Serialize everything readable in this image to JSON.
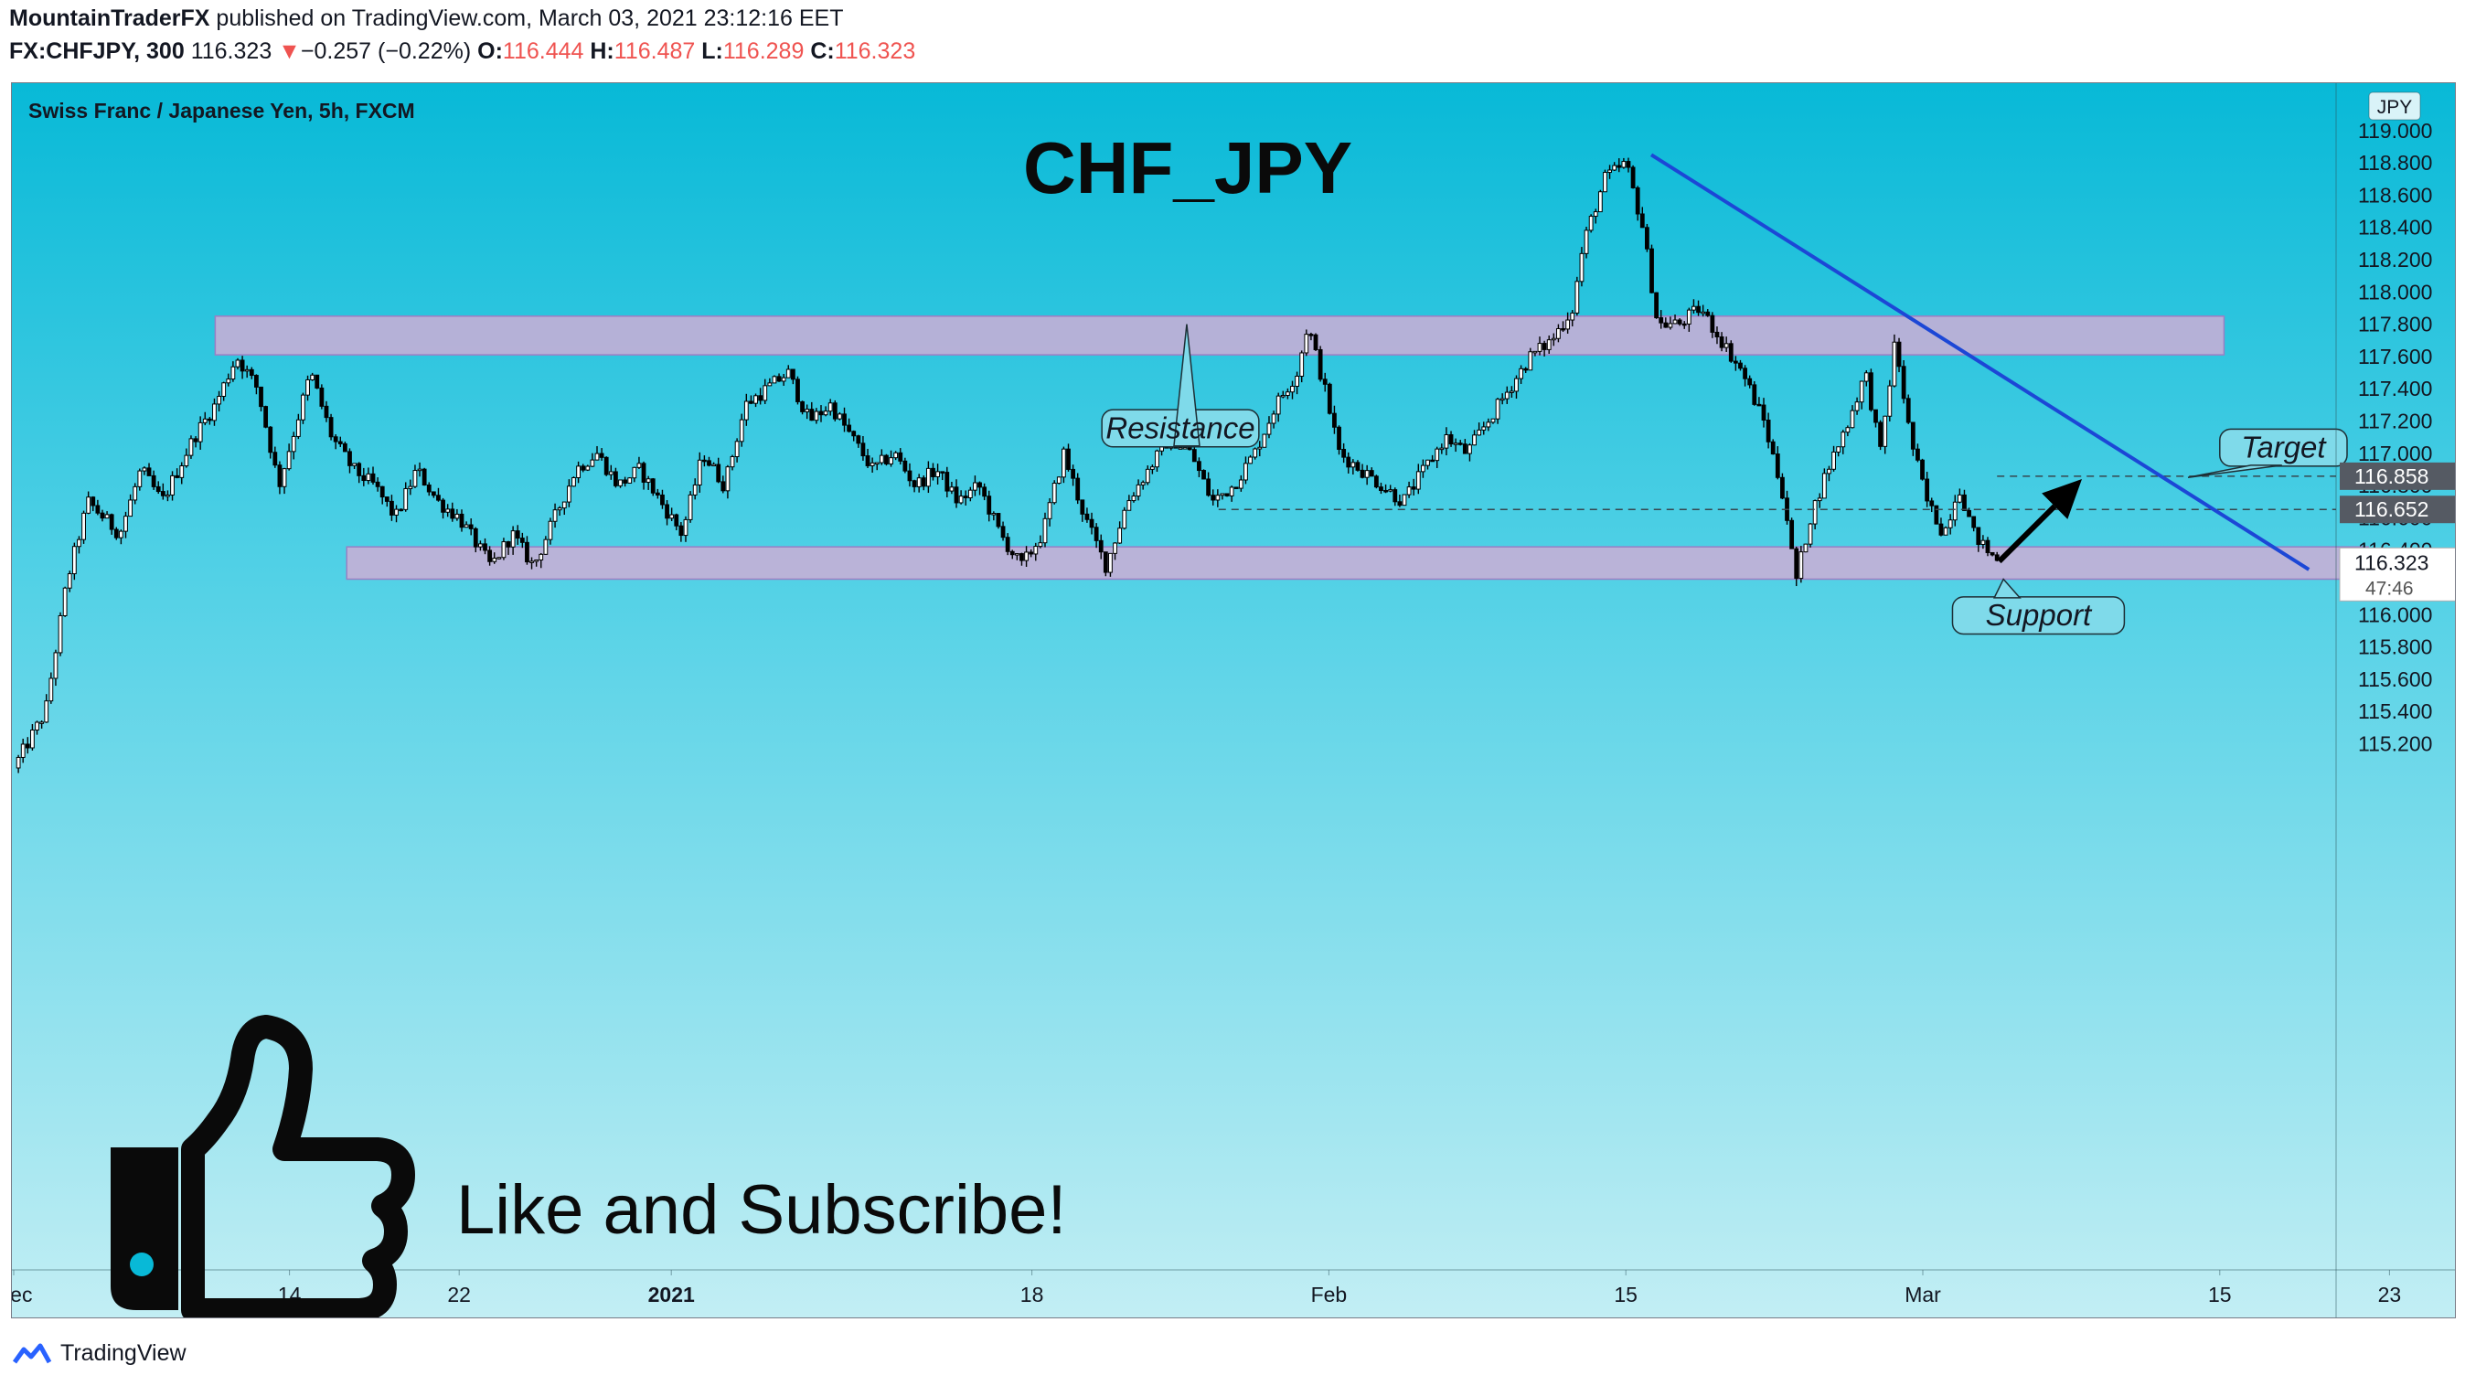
{
  "header": {
    "publisher": "MountainTraderFX",
    "published_text": "published on TradingView.com, March 03, 2021 23:12:16 EET",
    "symbol": "FX:CHFJPY, 300",
    "last": "116.323",
    "change_arrow": "▼",
    "change": "−0.257 (−0.22%)",
    "open_label": "O:",
    "open": "116.444",
    "high_label": "H:",
    "high": "116.487",
    "low_label": "L:",
    "low": "116.289",
    "close_label": "C:",
    "close": "116.323"
  },
  "footer": {
    "brand": "TradingView",
    "logo_icon": "tradingview-logo-icon"
  },
  "colors": {
    "accent_red": "#ef5350",
    "trendline": "#1c47d6",
    "zone_fill": "#c8aed6",
    "candle": "#000000"
  },
  "chart_data": {
    "type": "candlestick",
    "title": "Swiss Franc / Japanese Yen, 5h, FXCM",
    "headline": "CHF_JPY",
    "currency_badge": "JPY",
    "yaxis_ticks": [
      "119.000",
      "118.800",
      "118.600",
      "118.400",
      "118.200",
      "118.000",
      "117.800",
      "117.600",
      "117.400",
      "117.200",
      "117.000",
      "116.800",
      "116.600",
      "116.400",
      "116.000",
      "115.800",
      "115.600",
      "115.400",
      "115.200"
    ],
    "ylim": [
      115.0,
      119.4
    ],
    "xaxis_ticks": [
      {
        "label": "Dec",
        "day": 0
      },
      {
        "label": "14",
        "day": 13
      },
      {
        "label": "22",
        "day": 21
      },
      {
        "label": "2021",
        "day": 31
      },
      {
        "label": "18",
        "day": 48
      },
      {
        "label": "Feb",
        "day": 62
      },
      {
        "label": "15",
        "day": 76
      },
      {
        "label": "Mar",
        "day": 90
      },
      {
        "label": "15",
        "day": 104
      },
      {
        "label": "23",
        "day": 112
      }
    ],
    "price_labels": [
      "116.858",
      "116.652"
    ],
    "last_price": "116.323",
    "countdown": "47:46",
    "path": [
      [
        0,
        115.05
      ],
      [
        1.5,
        115.4
      ],
      [
        2.5,
        116.2
      ],
      [
        3.5,
        116.7
      ],
      [
        5,
        116.5
      ],
      [
        6,
        116.9
      ],
      [
        7,
        116.7
      ],
      [
        8.5,
        117.1
      ],
      [
        9.5,
        117.3
      ],
      [
        10.5,
        117.6
      ],
      [
        11.5,
        117.4
      ],
      [
        12.5,
        116.8
      ],
      [
        14,
        117.5
      ],
      [
        15,
        117.1
      ],
      [
        16,
        116.9
      ],
      [
        17,
        116.8
      ],
      [
        18,
        116.6
      ],
      [
        19,
        116.9
      ],
      [
        20,
        116.7
      ],
      [
        21,
        116.6
      ],
      [
        22.5,
        116.3
      ],
      [
        23.5,
        116.5
      ],
      [
        24.5,
        116.3
      ],
      [
        25.5,
        116.6
      ],
      [
        26.5,
        116.9
      ],
      [
        27.5,
        117.0
      ],
      [
        28.5,
        116.8
      ],
      [
        29.5,
        116.9
      ],
      [
        30.5,
        116.7
      ],
      [
        31.5,
        116.5
      ],
      [
        32.5,
        117.0
      ],
      [
        33.5,
        116.8
      ],
      [
        34.5,
        117.3
      ],
      [
        35.5,
        117.4
      ],
      [
        36.5,
        117.5
      ],
      [
        37.5,
        117.2
      ],
      [
        38.5,
        117.3
      ],
      [
        39.5,
        117.1
      ],
      [
        40.5,
        116.9
      ],
      [
        41.5,
        117.0
      ],
      [
        42.5,
        116.8
      ],
      [
        43.5,
        116.9
      ],
      [
        44.5,
        116.7
      ],
      [
        45.5,
        116.8
      ],
      [
        46.5,
        116.5
      ],
      [
        47.5,
        116.3
      ],
      [
        48.5,
        116.5
      ],
      [
        49.5,
        117.0
      ],
      [
        50.5,
        116.6
      ],
      [
        51.5,
        116.3
      ],
      [
        52.5,
        116.7
      ],
      [
        53.5,
        116.9
      ],
      [
        54.5,
        117.1
      ],
      [
        55.5,
        117.0
      ],
      [
        56.5,
        116.7
      ],
      [
        57.5,
        116.8
      ],
      [
        58.5,
        117.0
      ],
      [
        59.5,
        117.3
      ],
      [
        60.5,
        117.5
      ],
      [
        61,
        117.8
      ],
      [
        61.8,
        117.4
      ],
      [
        62.5,
        117.0
      ],
      [
        63.5,
        116.9
      ],
      [
        64.5,
        116.8
      ],
      [
        65.5,
        116.7
      ],
      [
        66.5,
        116.9
      ],
      [
        67.5,
        117.1
      ],
      [
        68.5,
        117.0
      ],
      [
        69.5,
        117.2
      ],
      [
        70.5,
        117.4
      ],
      [
        71.5,
        117.6
      ],
      [
        72.5,
        117.7
      ],
      [
        73.5,
        117.9
      ],
      [
        74,
        118.3
      ],
      [
        75,
        118.7
      ],
      [
        76,
        118.8
      ],
      [
        76.8,
        118.4
      ],
      [
        77.5,
        117.8
      ],
      [
        78.5,
        117.8
      ],
      [
        79.5,
        117.9
      ],
      [
        80.5,
        117.7
      ],
      [
        81.5,
        117.5
      ],
      [
        82.5,
        117.2
      ],
      [
        83.5,
        116.7
      ],
      [
        84,
        116.2
      ],
      [
        84.7,
        116.6
      ],
      [
        85.5,
        116.9
      ],
      [
        86.5,
        117.2
      ],
      [
        87.3,
        117.5
      ],
      [
        88,
        117.0
      ],
      [
        88.7,
        117.7
      ],
      [
        89.4,
        117.1
      ],
      [
        90.2,
        116.7
      ],
      [
        91,
        116.5
      ],
      [
        91.7,
        116.8
      ],
      [
        92.4,
        116.5
      ],
      [
        93,
        116.4
      ],
      [
        93.6,
        116.323
      ]
    ],
    "zones": [
      {
        "name": "resistance",
        "from_day": 9.5,
        "to_day": 104.2,
        "top": 117.85,
        "bottom": 117.61
      },
      {
        "name": "support",
        "from_day": 15.7,
        "to_day": 111,
        "top": 116.42,
        "bottom": 116.22
      }
    ],
    "trendline": {
      "from": [
        77.2,
        118.85
      ],
      "to": [
        108.2,
        116.28
      ]
    },
    "horizontal_lines": [
      {
        "price": 116.858,
        "from_day": 93.5
      },
      {
        "price": 116.652,
        "from_day": 56.8
      }
    ],
    "arrow": {
      "from": [
        93.6,
        116.33
      ],
      "to": [
        97.5,
        116.84
      ]
    },
    "callouts": [
      {
        "text": "Resistance",
        "box_day_left": 51.3,
        "box_day_right": 58.7,
        "box_price_top": 117.27,
        "box_price_bottom": 117.04,
        "tip": [
          55.3,
          117.8
        ],
        "tip_dir": "down"
      },
      {
        "text": "Target",
        "box_day_left": 104,
        "box_day_right": 110,
        "box_price_top": 117.15,
        "box_price_bottom": 116.92,
        "tip": [
          102.5,
          116.85
        ],
        "tip_dir": "down-left"
      },
      {
        "text": "Support",
        "box_day_left": 91.4,
        "box_day_right": 99.5,
        "box_price_top": 116.11,
        "box_price_bottom": 115.88,
        "tip": [
          93.8,
          116.22
        ],
        "tip_dir": "up"
      }
    ],
    "overlay_text": "Like and Subscribe!",
    "overlay_icon": "thumbs-up-icon"
  }
}
